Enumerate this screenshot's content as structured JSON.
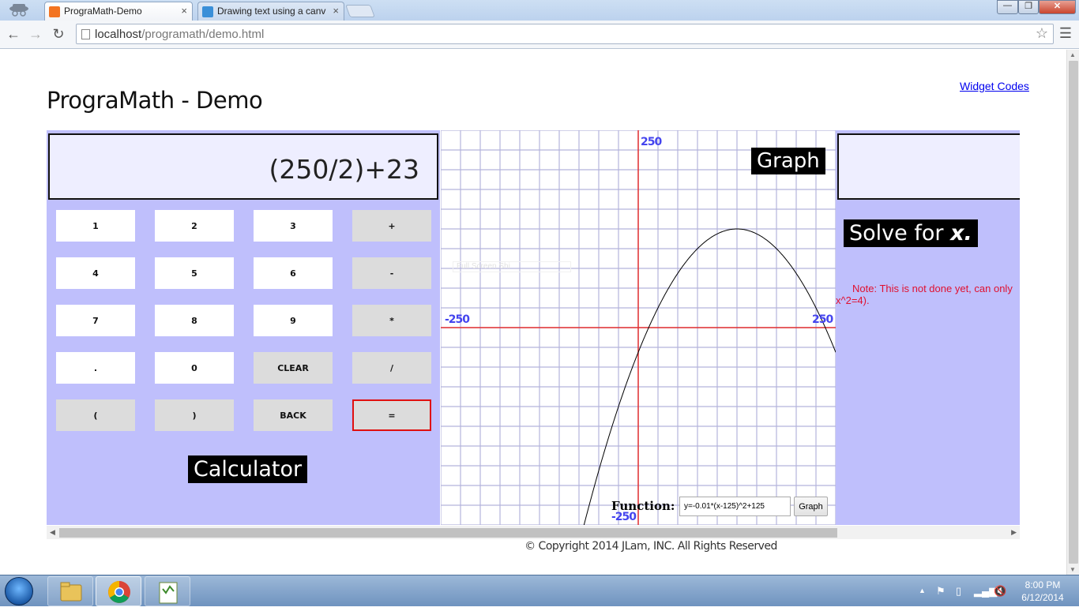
{
  "browser": {
    "tabs": [
      {
        "title": "PrograMath-Demo",
        "active": true
      },
      {
        "title": "Drawing text using a canv",
        "active": false
      }
    ],
    "close_glyph": "×",
    "window_controls": {
      "minimize": "—",
      "maximize": "❐",
      "close": "✕"
    },
    "url_host": "localhost",
    "url_path": "/programath/demo.html"
  },
  "page": {
    "widget_link": "Widget Codes",
    "title": "PrograMath - Demo",
    "copyright": "© Copyright 2014 JLam, INC. All Rights Reserved"
  },
  "calculator": {
    "display": "(250/2)+23",
    "label": "Calculator",
    "keys": [
      "1",
      "2",
      "3",
      "+",
      "4",
      "5",
      "6",
      "-",
      "7",
      "8",
      "9",
      "*",
      ".",
      "0",
      "CLEAR",
      "/",
      "(",
      ")",
      "BACK",
      "="
    ]
  },
  "graph": {
    "label": "Graph",
    "fullscreen_hint": "Full Screen Shi",
    "function_label": "Function:",
    "function_value": "y=-0.01*(x-125)^2+125",
    "graph_button": "Graph",
    "axis_labels": {
      "top": "250",
      "bottom": "-250",
      "left": "-250",
      "right": "250"
    },
    "xlim": [
      -250,
      250
    ],
    "ylim": [
      -250,
      250
    ],
    "grid": true,
    "plotted_function": {
      "a": -0.01,
      "h": 125,
      "k": 125
    }
  },
  "chart_data": {
    "type": "line",
    "title": "",
    "xlabel": "",
    "ylabel": "",
    "xlim": [
      -250,
      250
    ],
    "ylim": [
      -250,
      250
    ],
    "function": "y=-0.01*(x-125)^2+125"
  },
  "solver": {
    "label_prefix": "Solve for",
    "label_var": "x.",
    "note": "Note: This is not done yet, can only",
    "note_tail": "x^2=4)."
  },
  "taskbar": {
    "clock_time": "8:00 PM",
    "clock_date": "6/12/2014"
  },
  "colors": {
    "panel": "#bfbffc",
    "grid": "#b4b4dc",
    "axis": "#e43030",
    "axis_label": "#4444ee",
    "note": "#e01030"
  }
}
